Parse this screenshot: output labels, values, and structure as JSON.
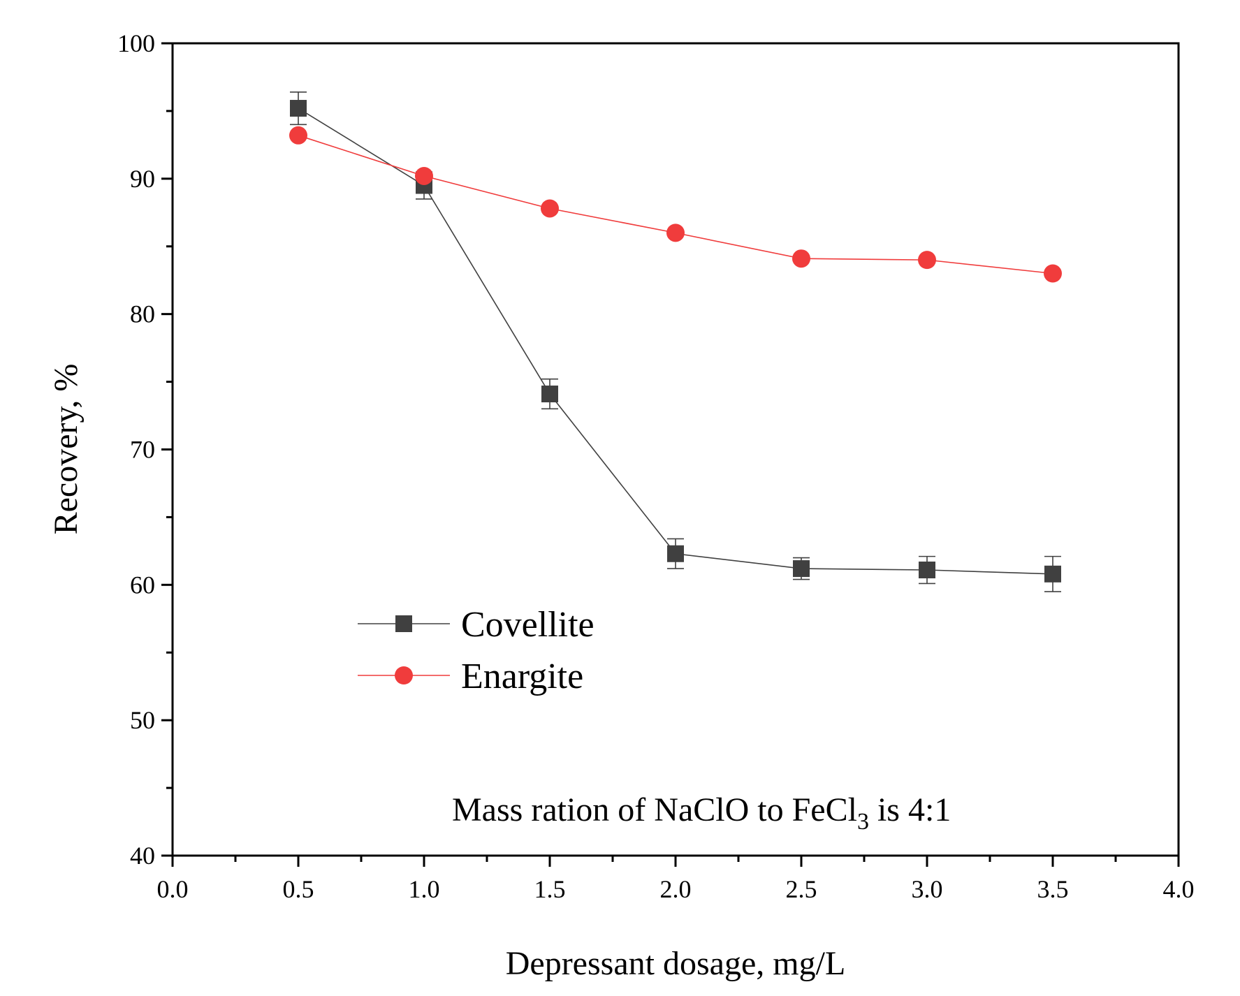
{
  "chart_data": {
    "type": "line",
    "title": "",
    "xlabel": "Depressant dosage, mg/L",
    "ylabel": "Recovery, %",
    "xlim": [
      0.0,
      4.0
    ],
    "ylim": [
      40,
      100
    ],
    "x_ticks": [
      "0.0",
      "0.5",
      "1.0",
      "1.5",
      "2.0",
      "2.5",
      "3.0",
      "3.5",
      "4.0"
    ],
    "y_ticks": [
      "40",
      "50",
      "60",
      "70",
      "80",
      "90",
      "100"
    ],
    "grid": false,
    "legend_position": "center-left",
    "series": [
      {
        "name": "Covellite",
        "color": "#404040",
        "marker": "square",
        "x": [
          0.5,
          1.0,
          1.5,
          2.0,
          2.5,
          3.0,
          3.5
        ],
        "y": [
          95.2,
          89.5,
          74.1,
          62.3,
          61.2,
          61.1,
          60.8
        ],
        "error": [
          1.2,
          1.0,
          1.1,
          1.1,
          0.8,
          1.0,
          1.3
        ]
      },
      {
        "name": "Enargite",
        "color": "#f03c3c",
        "marker": "circle",
        "x": [
          0.5,
          1.0,
          1.5,
          2.0,
          2.5,
          3.0,
          3.5
        ],
        "y": [
          93.2,
          90.2,
          87.8,
          86.0,
          84.1,
          84.0,
          83.0
        ],
        "error": [
          0,
          0,
          0,
          0,
          0,
          0,
          0
        ]
      }
    ],
    "annotation": {
      "text_main": "Mass ration of NaClO to FeCl",
      "subscript": "3",
      "text_tail": " is 4:1"
    }
  }
}
